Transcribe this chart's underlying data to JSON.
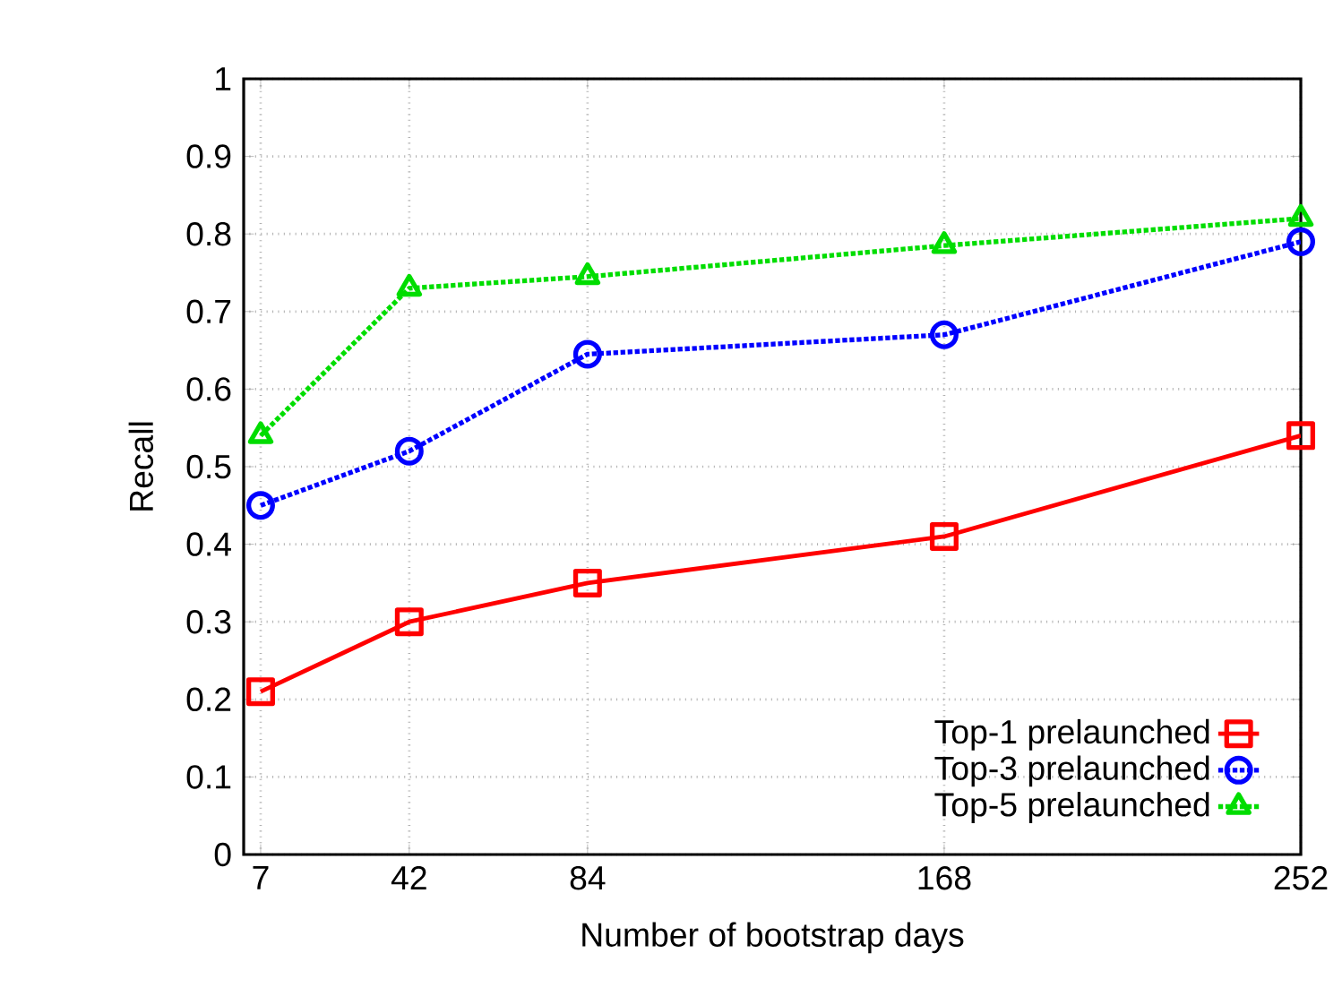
{
  "chart_data": {
    "type": "line",
    "xlabel": "Number of bootstrap days",
    "ylabel": "Recall",
    "x": [
      7,
      42,
      84,
      168,
      252
    ],
    "series": [
      {
        "name": "Top-1 prelaunched",
        "color": "#ff0000",
        "marker": "square",
        "line_style": "solid",
        "values": [
          0.21,
          0.3,
          0.35,
          0.41,
          0.54
        ]
      },
      {
        "name": "Top-3 prelaunched",
        "color": "#0000ff",
        "marker": "circle",
        "line_style": "dotted",
        "values": [
          0.45,
          0.52,
          0.645,
          0.67,
          0.79
        ]
      },
      {
        "name": "Top-5 prelaunched",
        "color": "#00dd00",
        "marker": "triangle",
        "line_style": "dotted",
        "values": [
          0.54,
          0.73,
          0.745,
          0.785,
          0.82
        ]
      }
    ],
    "xlim": [
      3,
      252
    ],
    "ylim": [
      0,
      1
    ],
    "xticks": [
      7,
      42,
      84,
      168,
      252
    ],
    "yticks": [
      0,
      0.1,
      0.2,
      0.3,
      0.4,
      0.5,
      0.6,
      0.7,
      0.8,
      0.9,
      1
    ],
    "grid": true,
    "legend": "bottom right"
  }
}
